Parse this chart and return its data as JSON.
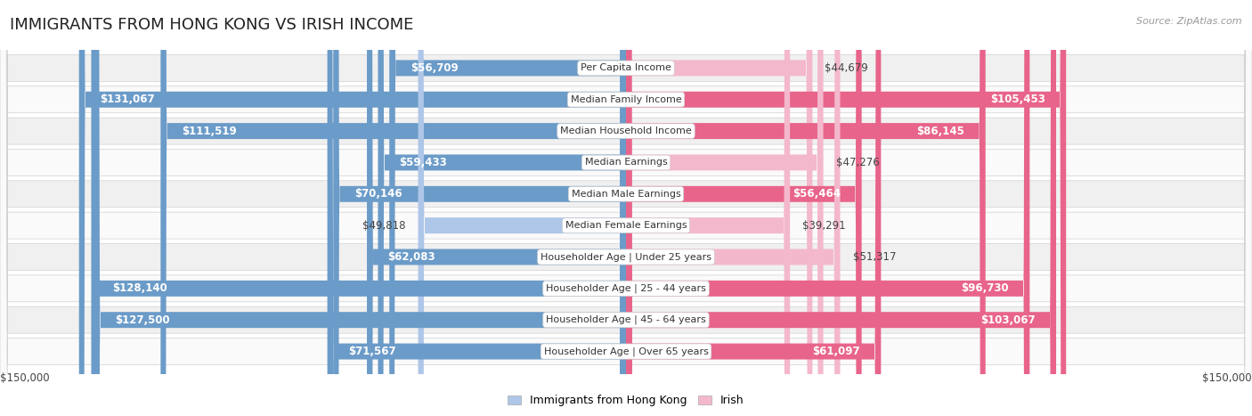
{
  "title": "IMMIGRANTS FROM HONG KONG VS IRISH INCOME",
  "source": "Source: ZipAtlas.com",
  "categories": [
    "Per Capita Income",
    "Median Family Income",
    "Median Household Income",
    "Median Earnings",
    "Median Male Earnings",
    "Median Female Earnings",
    "Householder Age | Under 25 years",
    "Householder Age | 25 - 44 years",
    "Householder Age | 45 - 64 years",
    "Householder Age | Over 65 years"
  ],
  "hk_values": [
    56709,
    131067,
    111519,
    59433,
    70146,
    49818,
    62083,
    128140,
    127500,
    71567
  ],
  "irish_values": [
    44679,
    105453,
    86145,
    47276,
    56464,
    39291,
    51317,
    96730,
    103067,
    61097
  ],
  "hk_labels": [
    "$56,709",
    "$131,067",
    "$111,519",
    "$59,433",
    "$70,146",
    "$49,818",
    "$62,083",
    "$128,140",
    "$127,500",
    "$71,567"
  ],
  "irish_labels": [
    "$44,679",
    "$105,453",
    "$86,145",
    "$47,276",
    "$56,464",
    "$39,291",
    "$51,317",
    "$96,730",
    "$103,067",
    "$61,097"
  ],
  "hk_color_light": "#aec6e8",
  "hk_color_dark": "#6b9bc8",
  "irish_color_light": "#f4b8cc",
  "irish_color_dark": "#e8648a",
  "max_value": 150000,
  "background_color": "#ffffff",
  "row_bg_even": "#f0f0f0",
  "row_bg_odd": "#fafafa",
  "row_border_color": "#d0d0d0",
  "title_fontsize": 13,
  "label_fontsize": 8.5,
  "category_fontsize": 8,
  "axis_label": "$150,000",
  "inside_label_threshold": 55000,
  "legend_label_hk": "Immigrants from Hong Kong",
  "legend_label_irish": "Irish"
}
